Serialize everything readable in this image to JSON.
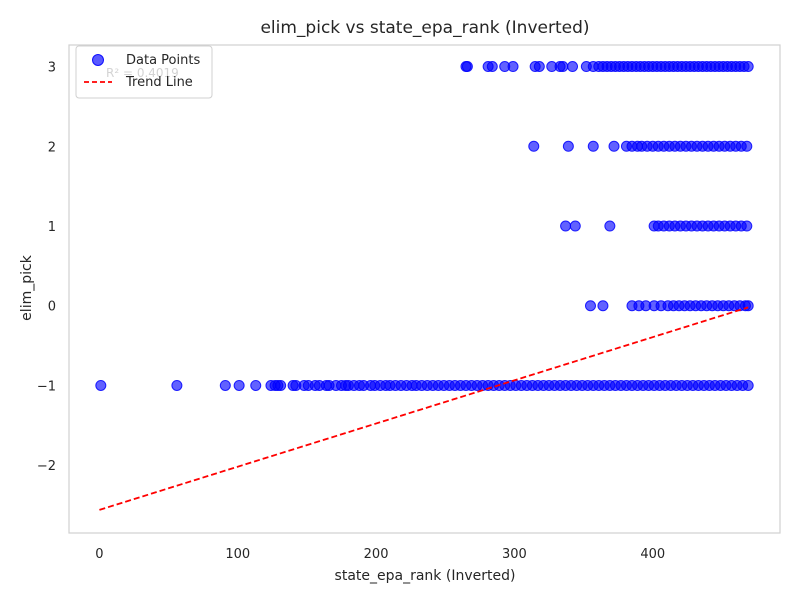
{
  "chart_data": {
    "type": "scatter",
    "title": "elim_pick vs state_epa_rank (Inverted)",
    "xlabel": "state_epa_rank (Inverted)",
    "ylabel": "elim_pick",
    "xlim": [
      -22,
      492
    ],
    "ylim": [
      -2.85,
      3.27
    ],
    "xticks": [
      0,
      100,
      200,
      300,
      400
    ],
    "yticks": [
      -2,
      -1,
      0,
      1,
      2,
      3
    ],
    "xtick_labels": [
      "0",
      "100",
      "200",
      "300",
      "400"
    ],
    "ytick_labels": [
      "−2",
      "−1",
      "0",
      "1",
      "2",
      "3"
    ],
    "grid": true,
    "legend_position": "upper-left",
    "legend": [
      {
        "label": "Data Points",
        "marker": "circle"
      },
      {
        "label": "Trend Line",
        "marker": "dashed-line"
      }
    ],
    "annotation": "R² = 0.4019",
    "colors": {
      "points": "#0000ff",
      "trend": "#ff0000",
      "grid": "#d9d9d9",
      "axes": "#d0d0d0"
    },
    "series": [
      {
        "name": "Data Points",
        "type": "scatter",
        "points": [
          [
            1,
            -1
          ],
          [
            56,
            -1
          ],
          [
            91,
            -1
          ],
          [
            101,
            -1
          ],
          [
            113,
            -1
          ],
          [
            124,
            -1
          ],
          [
            127,
            -1
          ],
          [
            129,
            -1
          ],
          [
            131,
            -1
          ],
          [
            140,
            -1
          ],
          [
            142,
            -1
          ],
          [
            148,
            -1
          ],
          [
            151,
            -1
          ],
          [
            156,
            -1
          ],
          [
            159,
            -1
          ],
          [
            164,
            -1
          ],
          [
            166,
            -1
          ],
          [
            171,
            -1
          ],
          [
            175,
            -1
          ],
          [
            178,
            -1
          ],
          [
            180,
            -1
          ],
          [
            184,
            -1
          ],
          [
            188,
            -1
          ],
          [
            191,
            -1
          ],
          [
            196,
            -1
          ],
          [
            199,
            -1
          ],
          [
            203,
            -1
          ],
          [
            207,
            -1
          ],
          [
            210,
            -1
          ],
          [
            214,
            -1
          ],
          [
            218,
            -1
          ],
          [
            222,
            -1
          ],
          [
            226,
            -1
          ],
          [
            229,
            -1
          ],
          [
            233,
            -1
          ],
          [
            237,
            -1
          ],
          [
            241,
            -1
          ],
          [
            245,
            -1
          ],
          [
            249,
            -1
          ],
          [
            253,
            -1
          ],
          [
            257,
            -1
          ],
          [
            261,
            -1
          ],
          [
            265,
            -1
          ],
          [
            269,
            -1
          ],
          [
            273,
            -1
          ],
          [
            277,
            -1
          ],
          [
            281,
            -1
          ],
          [
            285,
            -1
          ],
          [
            289,
            -1
          ],
          [
            293,
            -1
          ],
          [
            297,
            -1
          ],
          [
            301,
            -1
          ],
          [
            305,
            -1
          ],
          [
            309,
            -1
          ],
          [
            313,
            -1
          ],
          [
            317,
            -1
          ],
          [
            321,
            -1
          ],
          [
            325,
            -1
          ],
          [
            329,
            -1
          ],
          [
            333,
            -1
          ],
          [
            337,
            -1
          ],
          [
            341,
            -1
          ],
          [
            345,
            -1
          ],
          [
            349,
            -1
          ],
          [
            353,
            -1
          ],
          [
            357,
            -1
          ],
          [
            361,
            -1
          ],
          [
            365,
            -1
          ],
          [
            369,
            -1
          ],
          [
            373,
            -1
          ],
          [
            377,
            -1
          ],
          [
            381,
            -1
          ],
          [
            385,
            -1
          ],
          [
            389,
            -1
          ],
          [
            393,
            -1
          ],
          [
            397,
            -1
          ],
          [
            401,
            -1
          ],
          [
            405,
            -1
          ],
          [
            409,
            -1
          ],
          [
            413,
            -1
          ],
          [
            417,
            -1
          ],
          [
            421,
            -1
          ],
          [
            425,
            -1
          ],
          [
            429,
            -1
          ],
          [
            433,
            -1
          ],
          [
            437,
            -1
          ],
          [
            441,
            -1
          ],
          [
            445,
            -1
          ],
          [
            449,
            -1
          ],
          [
            453,
            -1
          ],
          [
            457,
            -1
          ],
          [
            461,
            -1
          ],
          [
            465,
            -1
          ],
          [
            469,
            -1
          ],
          [
            355,
            0
          ],
          [
            364,
            0
          ],
          [
            385,
            0
          ],
          [
            390,
            0
          ],
          [
            395,
            0
          ],
          [
            401,
            0
          ],
          [
            406,
            0
          ],
          [
            411,
            0
          ],
          [
            415,
            0
          ],
          [
            419,
            0
          ],
          [
            423,
            0
          ],
          [
            427,
            0
          ],
          [
            431,
            0
          ],
          [
            435,
            0
          ],
          [
            439,
            0
          ],
          [
            443,
            0
          ],
          [
            447,
            0
          ],
          [
            451,
            0
          ],
          [
            455,
            0
          ],
          [
            459,
            0
          ],
          [
            463,
            0
          ],
          [
            467,
            0
          ],
          [
            469,
            0
          ],
          [
            337,
            1
          ],
          [
            344,
            1
          ],
          [
            369,
            1
          ],
          [
            401,
            1
          ],
          [
            404,
            1
          ],
          [
            408,
            1
          ],
          [
            412,
            1
          ],
          [
            416,
            1
          ],
          [
            420,
            1
          ],
          [
            424,
            1
          ],
          [
            428,
            1
          ],
          [
            432,
            1
          ],
          [
            436,
            1
          ],
          [
            440,
            1
          ],
          [
            444,
            1
          ],
          [
            448,
            1
          ],
          [
            452,
            1
          ],
          [
            456,
            1
          ],
          [
            460,
            1
          ],
          [
            464,
            1
          ],
          [
            468,
            1
          ],
          [
            314,
            2
          ],
          [
            339,
            2
          ],
          [
            357,
            2
          ],
          [
            372,
            2
          ],
          [
            381,
            2
          ],
          [
            385,
            2
          ],
          [
            389,
            2
          ],
          [
            392,
            2
          ],
          [
            396,
            2
          ],
          [
            400,
            2
          ],
          [
            404,
            2
          ],
          [
            408,
            2
          ],
          [
            412,
            2
          ],
          [
            416,
            2
          ],
          [
            420,
            2
          ],
          [
            424,
            2
          ],
          [
            428,
            2
          ],
          [
            432,
            2
          ],
          [
            436,
            2
          ],
          [
            440,
            2
          ],
          [
            444,
            2
          ],
          [
            448,
            2
          ],
          [
            452,
            2
          ],
          [
            456,
            2
          ],
          [
            460,
            2
          ],
          [
            464,
            2
          ],
          [
            468,
            2
          ],
          [
            265,
            3
          ],
          [
            266,
            3
          ],
          [
            281,
            3
          ],
          [
            284,
            3
          ],
          [
            293,
            3
          ],
          [
            299,
            3
          ],
          [
            315,
            3
          ],
          [
            318,
            3
          ],
          [
            327,
            3
          ],
          [
            333,
            3
          ],
          [
            335,
            3
          ],
          [
            342,
            3
          ],
          [
            352,
            3
          ],
          [
            357,
            3
          ],
          [
            361,
            3
          ],
          [
            364,
            3
          ],
          [
            367,
            3
          ],
          [
            370,
            3
          ],
          [
            373,
            3
          ],
          [
            376,
            3
          ],
          [
            379,
            3
          ],
          [
            382,
            3
          ],
          [
            385,
            3
          ],
          [
            388,
            3
          ],
          [
            391,
            3
          ],
          [
            394,
            3
          ],
          [
            397,
            3
          ],
          [
            400,
            3
          ],
          [
            403,
            3
          ],
          [
            406,
            3
          ],
          [
            409,
            3
          ],
          [
            412,
            3
          ],
          [
            415,
            3
          ],
          [
            418,
            3
          ],
          [
            421,
            3
          ],
          [
            424,
            3
          ],
          [
            427,
            3
          ],
          [
            430,
            3
          ],
          [
            433,
            3
          ],
          [
            436,
            3
          ],
          [
            439,
            3
          ],
          [
            442,
            3
          ],
          [
            445,
            3
          ],
          [
            448,
            3
          ],
          [
            451,
            3
          ],
          [
            454,
            3
          ],
          [
            457,
            3
          ],
          [
            460,
            3
          ],
          [
            463,
            3
          ],
          [
            466,
            3
          ],
          [
            469,
            3
          ]
        ]
      },
      {
        "name": "Trend Line",
        "type": "line",
        "style": "dashed",
        "points": [
          [
            0,
            -2.56
          ],
          [
            469,
            -0.02
          ]
        ]
      }
    ]
  }
}
